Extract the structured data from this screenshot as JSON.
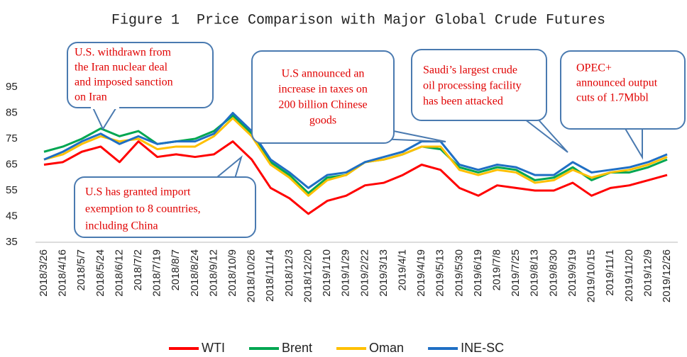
{
  "chart_data": {
    "type": "line",
    "title": "Figure 1  Price Comparison with Major Global Crude Futures",
    "categories": [
      "2018/3/26",
      "2018/4/16",
      "2018/5/7",
      "2018/5/24",
      "2018/6/12",
      "2018/7/2",
      "2018/7/19",
      "2018/8/7",
      "2018/8/24",
      "2018/9/12",
      "2018/10/9",
      "2018/10/26",
      "2018/11/14",
      "2018/12/3",
      "2018/12/20",
      "2019/1/10",
      "2019/1/29",
      "2019/2/22",
      "2019/3/13",
      "2019/4/1",
      "2019/4/19",
      "2019/5/13",
      "2019/5/30",
      "2019/6/19",
      "2019/7/8",
      "2019/7/25",
      "2019/8/13",
      "2019/8/30",
      "2019/9/19",
      "2019/10/15",
      "2019/11/1",
      "2019/11/20",
      "2019/12/9",
      "2019/12/26"
    ],
    "series": [
      {
        "name": "WTI",
        "color": "#ff0000",
        "values": [
          65,
          66,
          70,
          72,
          66,
          74,
          68,
          69,
          68,
          69,
          74,
          67,
          56,
          52,
          46,
          51,
          53,
          57,
          58,
          61,
          65,
          63,
          56,
          53,
          57,
          56,
          55,
          55,
          58,
          53,
          56,
          57,
          59,
          61
        ]
      },
      {
        "name": "Brent",
        "color": "#00a651",
        "values": [
          70,
          72,
          75,
          79,
          76,
          78,
          73,
          74,
          75,
          78,
          84,
          77,
          66,
          61,
          54,
          60,
          61,
          66,
          67,
          69,
          72,
          71,
          64,
          62,
          64,
          63,
          59,
          60,
          64,
          59,
          62,
          62,
          64,
          67
        ]
      },
      {
        "name": "Oman",
        "color": "#ffc000",
        "values": [
          67,
          69,
          73,
          76,
          74,
          75,
          71,
          72,
          72,
          76,
          83,
          76,
          65,
          60,
          53,
          59,
          61,
          66,
          67,
          69,
          72,
          72,
          63,
          61,
          63,
          62,
          58,
          59,
          63,
          60,
          62,
          63,
          65,
          68
        ]
      },
      {
        "name": "INE-SC",
        "color": "#1f6fc4",
        "values": [
          67,
          70,
          74,
          77,
          73,
          76,
          73,
          74,
          74,
          77,
          85,
          78,
          67,
          62,
          56,
          61,
          62,
          66,
          68,
          70,
          74,
          74,
          65,
          63,
          65,
          64,
          61,
          61,
          66,
          62,
          63,
          64,
          66,
          69
        ]
      }
    ],
    "ylim": [
      35,
      95
    ],
    "yticks": [
      35,
      45,
      55,
      65,
      75,
      85,
      95
    ],
    "annotations": [
      {
        "lines": [
          "U.S. withdrawn from",
          "the Iran nuclear deal",
          "and imposed sanction",
          "on Iran"
        ]
      },
      {
        "lines": [
          "U.S announced an",
          "increase in taxes on",
          "200 billion Chinese",
          "goods"
        ]
      },
      {
        "lines": [
          "Saudi’s largest crude",
          "oil processing facility",
          "has been attacked"
        ]
      },
      {
        "lines": [
          "OPEC+",
          "announced output",
          "cuts of 1.7Mbbl"
        ]
      },
      {
        "lines": [
          "U.S has granted import",
          "exemption to 8 countries,",
          "including China"
        ]
      }
    ]
  }
}
